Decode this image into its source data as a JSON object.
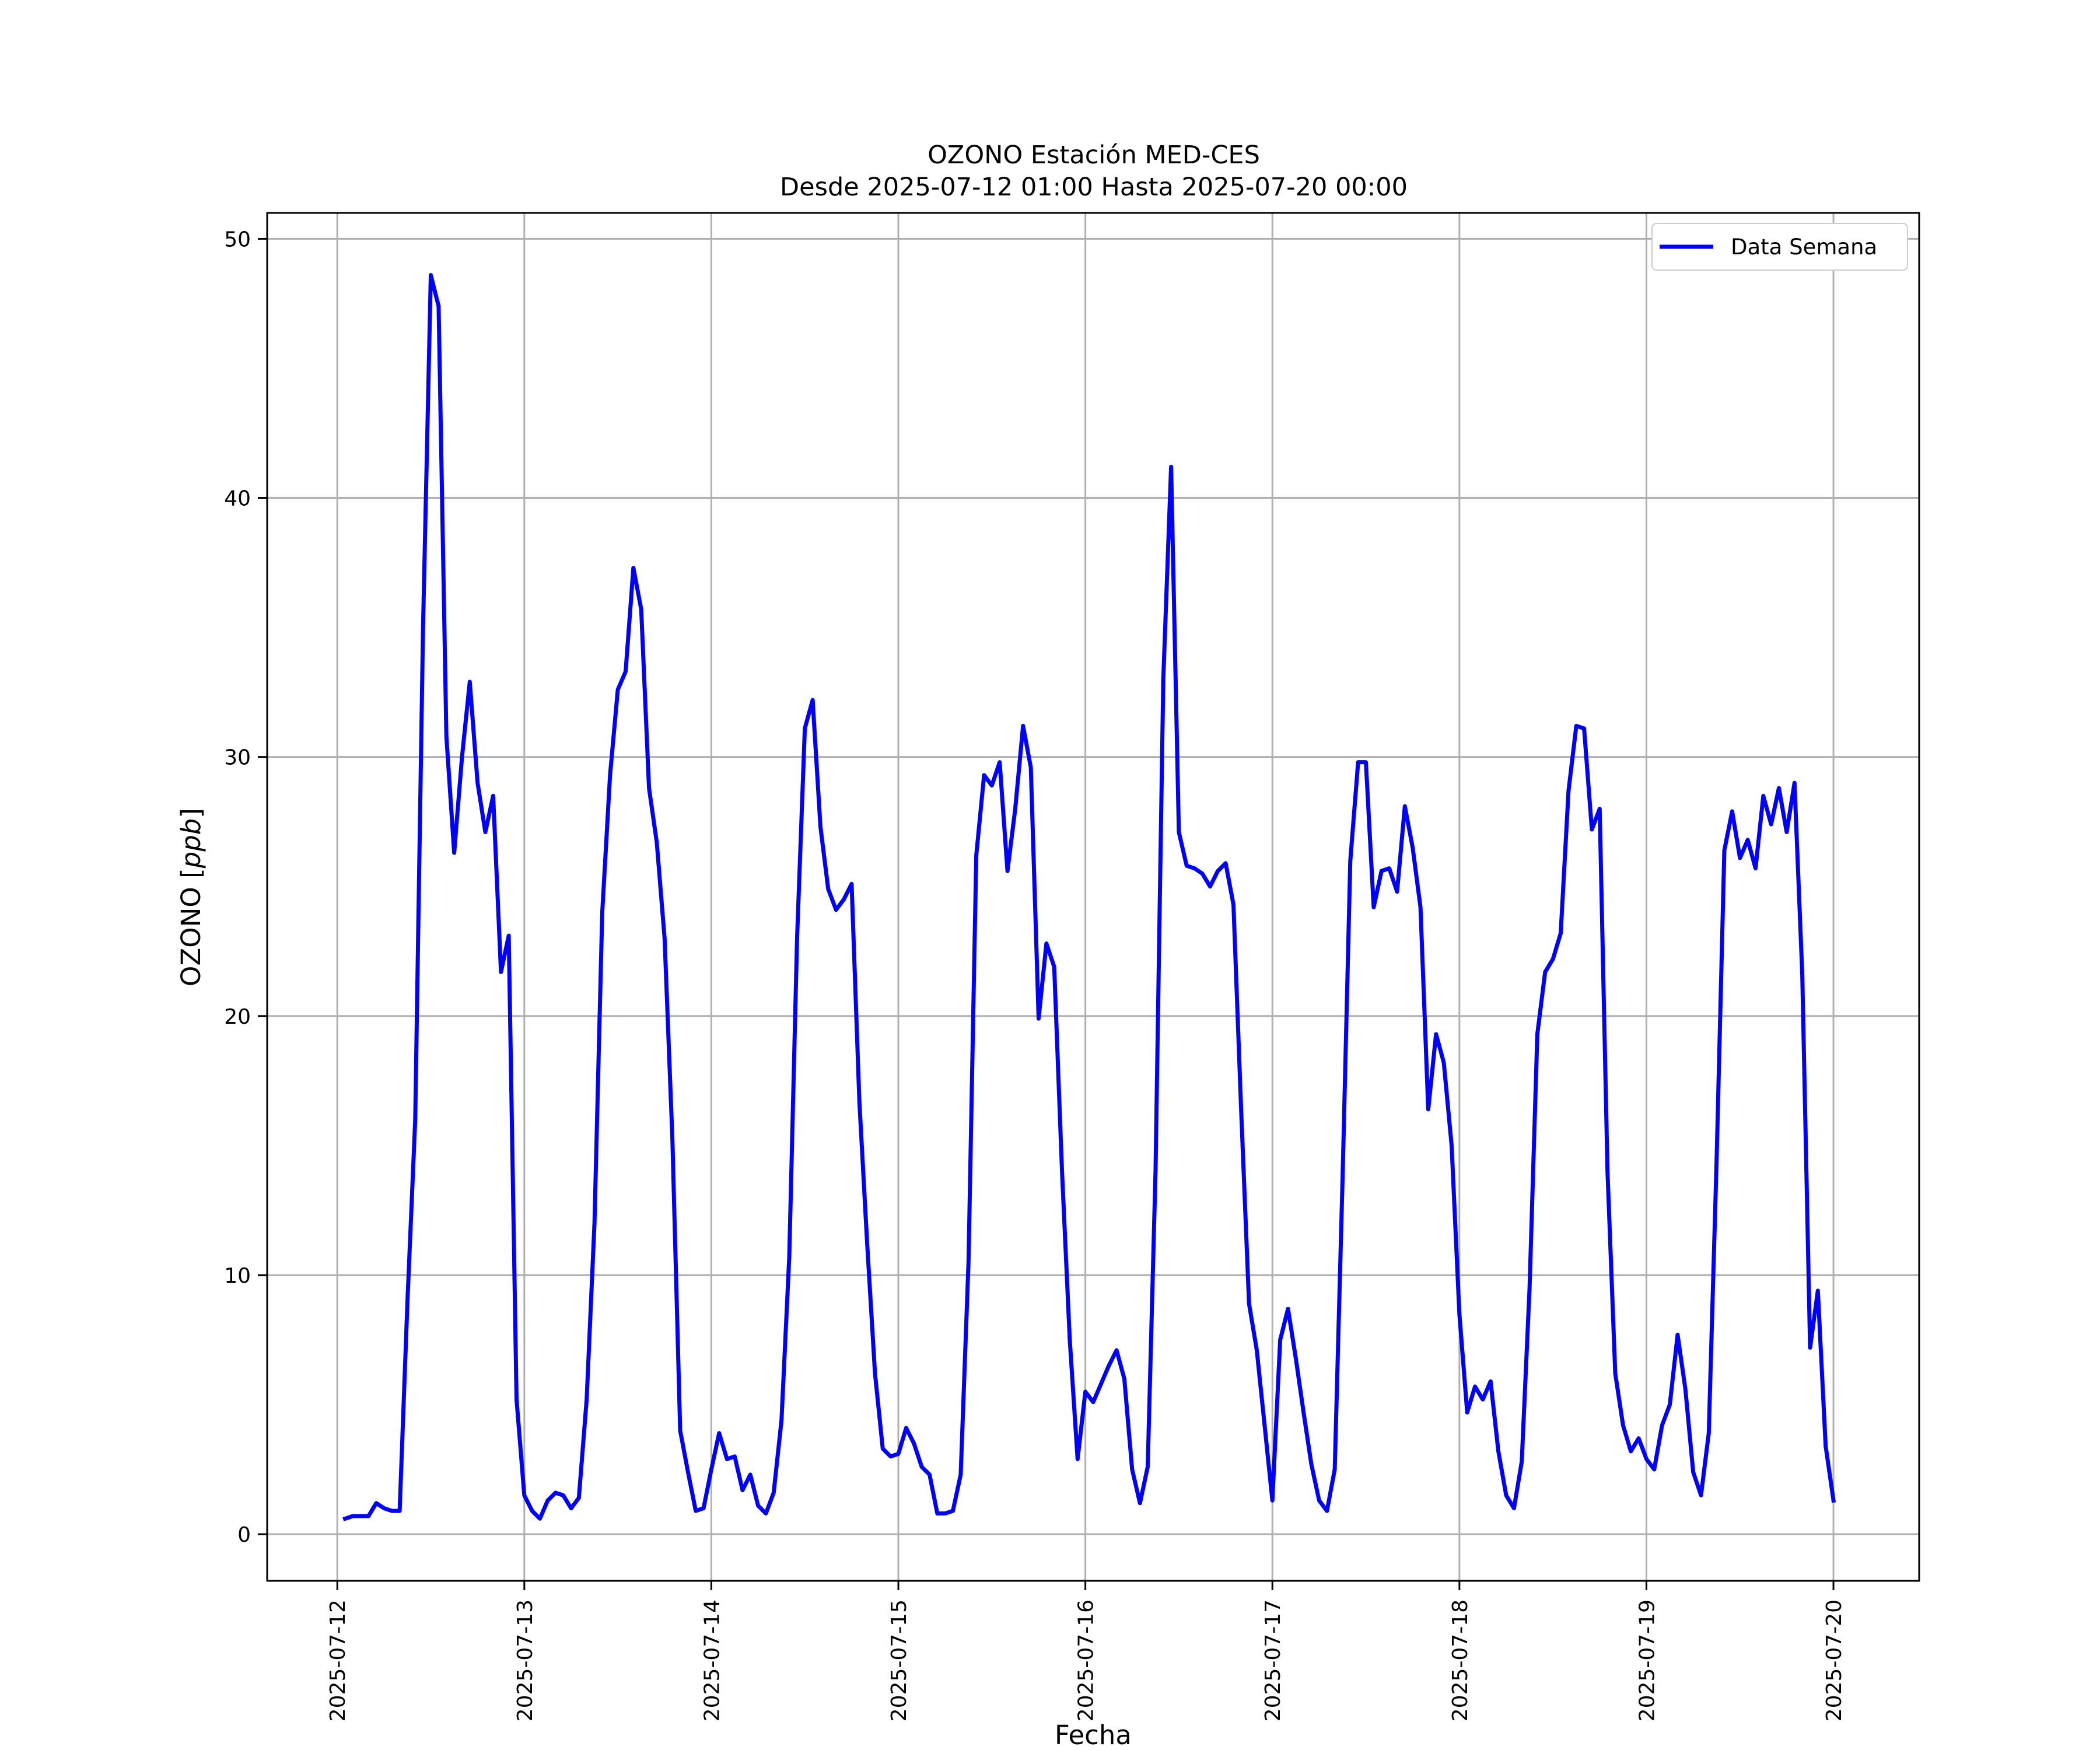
{
  "chart_data": {
    "type": "line",
    "title_lines": [
      "OZONO Estación MED-CES",
      "Desde 2025-07-12 01:00 Hasta 2025-07-20 00:00"
    ],
    "xlabel": "Fecha",
    "ylabel": "OZONO [ppb]",
    "ylabel_parts": {
      "prefix": "OZONO [",
      "unit": "ppb",
      "suffix": "]"
    },
    "ylim": [
      -1.8,
      51
    ],
    "xlim": [
      "2025-07-11T15:00",
      "2025-07-20T11:00"
    ],
    "x_ticks": [
      "2025-07-12",
      "2025-07-13",
      "2025-07-14",
      "2025-07-15",
      "2025-07-16",
      "2025-07-17",
      "2025-07-18",
      "2025-07-19",
      "2025-07-20"
    ],
    "y_ticks": [
      0,
      10,
      20,
      30,
      40,
      50
    ],
    "grid": true,
    "legend_position": "top-right",
    "line_color": "#0000ff",
    "series": [
      {
        "name": "Data Semana",
        "x_start": "2025-07-12T01:00",
        "x_end": "2025-07-20T00:00",
        "x_step": "1h",
        "values": [
          0.6,
          0.7,
          0.7,
          0.7,
          1.2,
          1.0,
          0.9,
          0.9,
          9.0,
          16.0,
          35.0,
          48.6,
          47.4,
          30.8,
          26.3,
          30.0,
          32.9,
          29.0,
          27.1,
          28.5,
          21.7,
          23.1,
          5.2,
          1.5,
          0.9,
          0.6,
          1.3,
          1.6,
          1.5,
          1.0,
          1.4,
          5.2,
          12.0,
          24.0,
          29.3,
          32.6,
          33.3,
          37.3,
          35.7,
          28.8,
          26.7,
          23.0,
          15.3,
          4.0,
          2.4,
          0.9,
          1.0,
          2.5,
          3.9,
          2.9,
          3.0,
          1.7,
          2.3,
          1.1,
          0.8,
          1.6,
          4.4,
          10.7,
          23.0,
          31.1,
          32.2,
          27.3,
          24.9,
          24.1,
          24.5,
          25.1,
          16.7,
          11.2,
          6.2,
          3.3,
          3.0,
          3.1,
          4.1,
          3.5,
          2.6,
          2.3,
          0.8,
          0.8,
          0.9,
          2.3,
          10.5,
          26.2,
          29.3,
          28.9,
          29.8,
          25.6,
          28.0,
          31.2,
          29.6,
          19.9,
          22.8,
          21.9,
          14.0,
          7.5,
          2.9,
          5.5,
          5.1,
          5.8,
          6.5,
          7.1,
          6.0,
          2.5,
          1.2,
          2.6,
          14.0,
          33.0,
          41.2,
          27.1,
          25.8,
          25.7,
          25.5,
          25.0,
          25.6,
          25.9,
          24.3,
          16.3,
          8.9,
          7.1,
          4.2,
          1.3,
          7.5,
          8.7,
          6.8,
          4.7,
          2.7,
          1.3,
          0.9,
          2.5,
          13.7,
          26.0,
          29.8,
          29.8,
          24.2,
          25.6,
          25.7,
          24.8,
          28.1,
          26.5,
          24.2,
          16.4,
          19.3,
          18.2,
          15.0,
          8.5,
          4.7,
          5.7,
          5.2,
          5.9,
          3.2,
          1.5,
          1.0,
          2.8,
          9.5,
          19.3,
          21.7,
          22.2,
          23.2,
          28.7,
          31.2,
          31.1,
          27.2,
          28.0,
          14.0,
          6.2,
          4.2,
          3.2,
          3.7,
          2.9,
          2.5,
          4.2,
          5.0,
          7.7,
          5.6,
          2.4,
          1.5,
          3.9,
          14.4,
          26.4,
          27.9,
          26.1,
          26.8,
          25.7,
          28.5,
          27.4,
          28.8,
          27.1,
          29.0,
          21.6,
          7.2,
          9.4,
          3.4,
          1.3
        ]
      }
    ]
  }
}
